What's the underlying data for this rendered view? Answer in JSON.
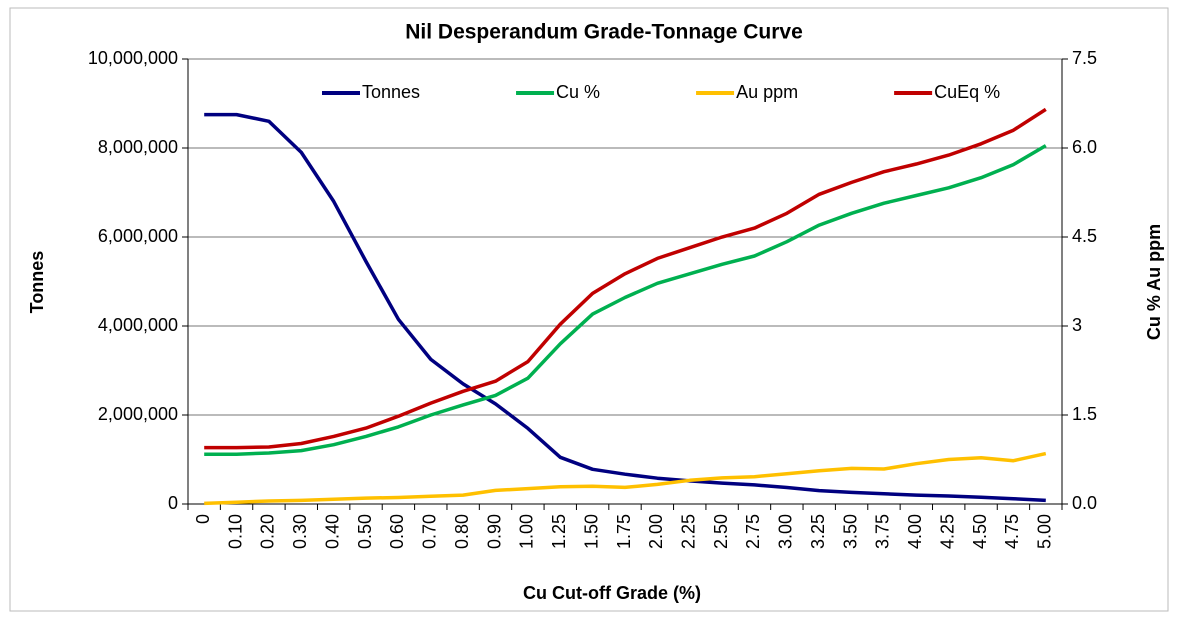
{
  "chart_data": {
    "type": "line",
    "title": "Nil Desperandum Grade-Tonnage Curve",
    "x_label": "Cu Cut-off Grade (%)",
    "y_label": "Tonnes",
    "y2_label": "Cu % Au ppm",
    "categories": [
      "0",
      "0.10",
      "0.20",
      "0.30",
      "0.40",
      "0.50",
      "0.60",
      "0.70",
      "0.80",
      "0.90",
      "1.00",
      "1.25",
      "1.50",
      "1.75",
      "2.00",
      "2.25",
      "2.50",
      "2.75",
      "3.00",
      "3.25",
      "3.50",
      "3.75",
      "4.00",
      "4.25",
      "4.50",
      "4.75",
      "5.00"
    ],
    "series": [
      {
        "name": "Tonnes",
        "color": "#000080",
        "axis": "y",
        "values": [
          8750000,
          8750000,
          8600000,
          7900000,
          6800000,
          5450000,
          4150000,
          3250000,
          2700000,
          2250000,
          1700000,
          1050000,
          780000,
          670000,
          580000,
          520000,
          470000,
          430000,
          370000,
          300000,
          260000,
          230000,
          200000,
          180000,
          150000,
          120000,
          80000
        ]
      },
      {
        "name": "Cu %",
        "color": "#00b050",
        "axis": "y2",
        "values": [
          0.84,
          0.84,
          0.86,
          0.9,
          1.0,
          1.14,
          1.3,
          1.5,
          1.67,
          1.83,
          2.12,
          2.7,
          3.2,
          3.48,
          3.72,
          3.88,
          4.04,
          4.18,
          4.42,
          4.7,
          4.9,
          5.07,
          5.2,
          5.33,
          5.5,
          5.72,
          6.04
        ]
      },
      {
        "name": "Au ppm",
        "color": "#ffc000",
        "axis": "y2",
        "values": [
          0.01,
          0.03,
          0.05,
          0.06,
          0.08,
          0.1,
          0.11,
          0.13,
          0.15,
          0.23,
          0.26,
          0.29,
          0.3,
          0.28,
          0.33,
          0.4,
          0.44,
          0.46,
          0.51,
          0.56,
          0.6,
          0.59,
          0.68,
          0.75,
          0.78,
          0.73,
          0.85
        ]
      },
      {
        "name": "CuEq %",
        "color": "#c00000",
        "axis": "y2",
        "values": [
          0.95,
          0.95,
          0.96,
          1.02,
          1.14,
          1.28,
          1.48,
          1.7,
          1.9,
          2.07,
          2.4,
          3.03,
          3.55,
          3.88,
          4.14,
          4.32,
          4.5,
          4.65,
          4.9,
          5.22,
          5.42,
          5.6,
          5.73,
          5.88,
          6.07,
          6.3,
          6.65
        ]
      }
    ],
    "ylim": [
      0,
      10000000
    ],
    "yticks": [
      0,
      {
        "value": 2000000,
        "label": "2,000,000"
      },
      {
        "value": 4000000,
        "label": "4,000,000"
      },
      {
        "value": 6000000,
        "label": "6,000,000"
      },
      {
        "value": 8000000,
        "label": "8,000,000"
      },
      {
        "value": 10000000,
        "label": "10,000,000"
      }
    ],
    "y2lim": [
      0,
      7.5
    ],
    "y2ticks": [
      {
        "value": 0,
        "label": "0.0"
      },
      1.5,
      3.0,
      4.5,
      {
        "value": 6,
        "label": "6.0"
      },
      7.5
    ],
    "grid": true,
    "legend": "top"
  }
}
